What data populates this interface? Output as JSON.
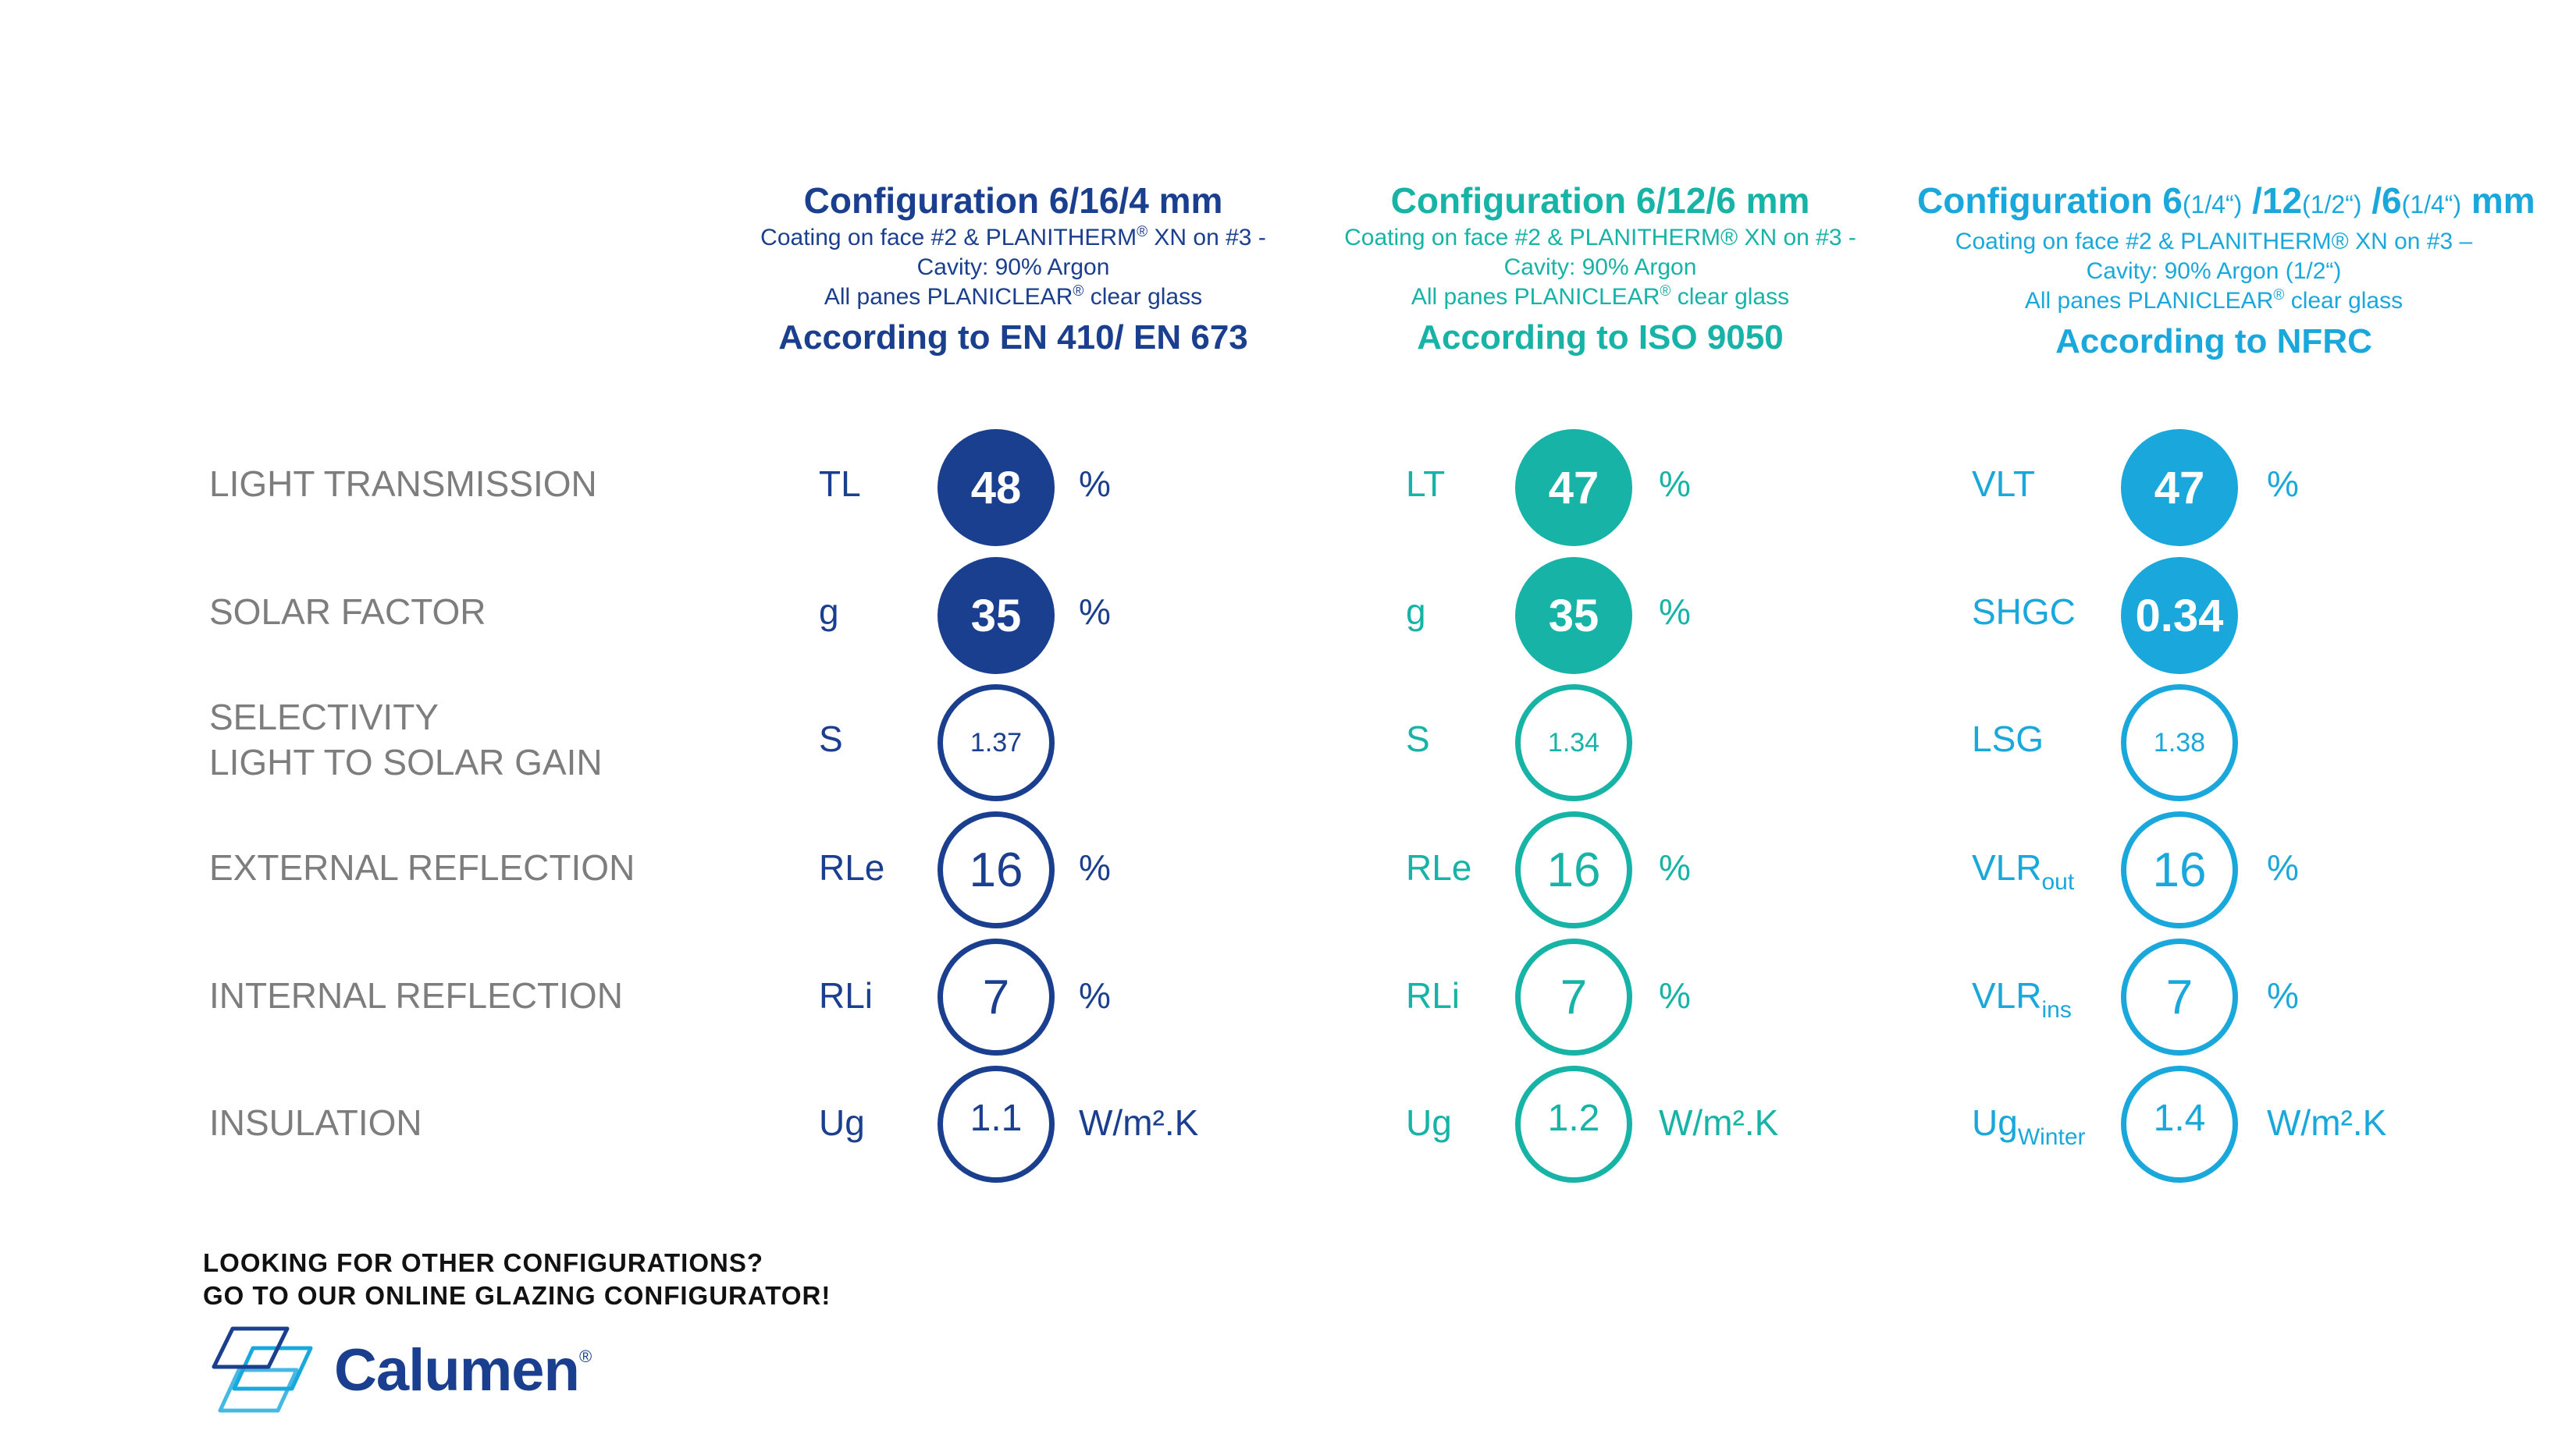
{
  "configs": [
    {
      "title_main": "Configuration 6/16/4 mm",
      "line1": "Coating on face #2 & PLANITHERM",
      "line1_reg": "®",
      "line1_end": " XN on #3 -",
      "line2": "Cavity: 90% Argon",
      "line3a": "All panes PLANICLEAR",
      "line3_reg": "®",
      "line3b": " clear glass",
      "standard": "According to EN 410/ EN 673",
      "rows": [
        {
          "sym": "TL",
          "val": "48",
          "unit": "%"
        },
        {
          "sym": "g",
          "val": "35",
          "unit": "%"
        },
        {
          "sym": "S",
          "val": "1.37",
          "unit": ""
        },
        {
          "sym": "RLe",
          "val": "16",
          "unit": "%"
        },
        {
          "sym": "RLi",
          "val": "7",
          "unit": "%"
        },
        {
          "sym": "Ug",
          "val": "1.1",
          "unit": "W/m².K"
        }
      ]
    },
    {
      "title_main": "Configuration 6/12/6 mm",
      "line1": "Coating on face #2 & PLANITHERM® XN on #3 -",
      "line2": "Cavity: 90% Argon",
      "line3a": "All panes PLANICLEAR",
      "line3_reg": "®",
      "line3b": " clear glass",
      "standard": "According to ISO 9050",
      "rows": [
        {
          "sym": "LT",
          "val": "47",
          "unit": "%"
        },
        {
          "sym": "g",
          "val": "35",
          "unit": "%"
        },
        {
          "sym": "S",
          "val": "1.34",
          "unit": ""
        },
        {
          "sym": "RLe",
          "val": "16",
          "unit": "%"
        },
        {
          "sym": "RLi",
          "val": "7",
          "unit": "%"
        },
        {
          "sym": "Ug",
          "val": "1.2",
          "unit": "W/m².K"
        }
      ]
    },
    {
      "title_a": "Configuration 6",
      "title_b": "(1/4“)",
      "title_c": " /12",
      "title_d": "(1/2“)",
      "title_e": " /6",
      "title_f": "(1/4“)",
      "title_g": " mm",
      "line1": "Coating on face #2 & PLANITHERM® XN on #3 –",
      "line2": "Cavity: 90% Argon (1/2“)",
      "line3a": "All panes PLANICLEAR",
      "line3_reg": "®",
      "line3b": " clear glass",
      "standard": "According to NFRC",
      "rows": [
        {
          "sym": "VLT",
          "val": "47",
          "unit": "%"
        },
        {
          "sym": "SHGC",
          "val": "0.34",
          "unit": ""
        },
        {
          "sym": "LSG",
          "val": "1.38",
          "unit": ""
        },
        {
          "sym": "VLR",
          "sub": "out",
          "val": "16",
          "unit": "%"
        },
        {
          "sym": "VLR",
          "sub": "ins",
          "val": "7",
          "unit": "%"
        },
        {
          "sym": "Ug",
          "sub": "Winter",
          "val": "1.4",
          "unit": "W/m².K"
        }
      ]
    }
  ],
  "row_labels": [
    [
      "LIGHT TRANSMISSION"
    ],
    [
      "SOLAR FACTOR"
    ],
    [
      "SELECTIVITY",
      "LIGHT TO SOLAR GAIN"
    ],
    [
      "EXTERNAL REFLECTION"
    ],
    [
      "INTERNAL REFLECTION"
    ],
    [
      "INSULATION"
    ]
  ],
  "footer": {
    "line1": "LOOKING FOR OTHER CONFIGURATIONS?",
    "line2": "GO TO OUR ONLINE GLAZING CONFIGURATOR!",
    "logo_text": "Calumen",
    "logo_reg": "®"
  },
  "colors": {
    "config1": "#1b3f8f",
    "config2": "#16b3a6",
    "config3": "#1aa8dc",
    "label_grey": "#7d7d7d"
  }
}
